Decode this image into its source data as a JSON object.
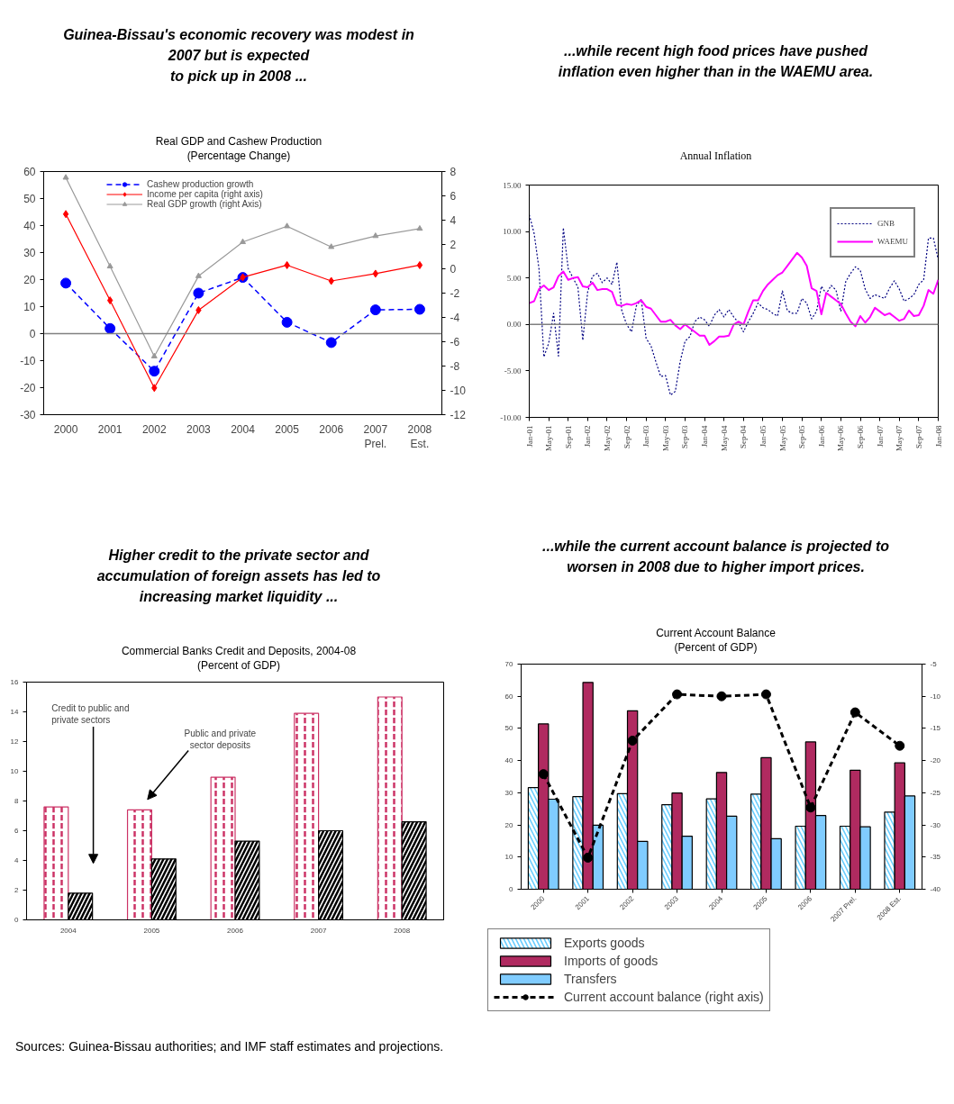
{
  "chart_data": [
    {
      "type": "line",
      "title": "Guinea-Bissau's economic recovery was modest in\n2007 but is expected\nto pick up in 2008 ...",
      "subtitle": "Real GDP and Cashew Production\n(Percentage Change)",
      "categories": [
        "2000",
        "2001",
        "2002",
        "2003",
        "2004",
        "2005",
        "2006",
        "2007\nPrel.",
        "2008\nEst."
      ],
      "ylim": [
        -30,
        60
      ],
      "yticks": [
        -30,
        -20,
        -10,
        0,
        10,
        20,
        30,
        40,
        50,
        60
      ],
      "y2lim": [
        -12,
        8
      ],
      "y2ticks": [
        -12,
        -10,
        -8,
        -6,
        -4,
        -2,
        0,
        2,
        4,
        6,
        8
      ],
      "ref_lines": [
        {
          "axis": "y",
          "value": 0,
          "color": "#808080"
        }
      ],
      "grid": false,
      "legend": "top left",
      "series": [
        {
          "name": "Cashew production growth",
          "color": "#0000ff",
          "marker": "circle",
          "line_style": "dashed",
          "values": [
            18.7,
            1.9,
            -13.9,
            15.0,
            20.8,
            4.2,
            -3.3,
            8.8,
            9.0
          ]
        },
        {
          "name": "Income per capita (right axis)",
          "color": "#ff0000",
          "marker": "diamond",
          "line_style": "solid",
          "axis": "y2",
          "values": [
            4.5,
            -2.6,
            -9.8,
            -3.4,
            -0.7,
            0.3,
            -1.0,
            -0.4,
            0.3
          ]
        },
        {
          "name": "Real GDP growth (right Axis)",
          "color": "#999999",
          "marker": "triangle",
          "line_style": "solid",
          "axis": "y2",
          "values": [
            7.5,
            0.2,
            -7.2,
            -0.6,
            2.2,
            3.5,
            1.8,
            2.7,
            3.3
          ]
        }
      ]
    },
    {
      "type": "line",
      "title": "...while recent high food prices have pushed\ninflation even higher than in the WAEMU area.",
      "subtitle": "Annual Inflation",
      "categories": [
        "Jan-01",
        null,
        null,
        null,
        "May-01",
        null,
        null,
        null,
        "Sep-01",
        null,
        null,
        null,
        "Jan-02",
        null,
        null,
        null,
        "May-02",
        null,
        null,
        null,
        "Sep-02",
        null,
        null,
        null,
        "Jan-03",
        null,
        null,
        null,
        "May-03",
        null,
        null,
        null,
        "Sep-03",
        null,
        null,
        null,
        "Jan-04",
        null,
        null,
        null,
        "May-04",
        null,
        null,
        null,
        "Sep-04",
        null,
        null,
        null,
        "Jan-05",
        null,
        null,
        null,
        "May-05",
        null,
        null,
        null,
        "Sep-05",
        null,
        null,
        null,
        "Jan-06",
        null,
        null,
        null,
        "May-06",
        null,
        null,
        null,
        "Sep-06",
        null,
        null,
        null,
        "Jan-07",
        null,
        null,
        null,
        "May-07",
        null,
        null,
        null,
        "Sep-07",
        null,
        null,
        null,
        "Jan-08"
      ],
      "ylim": [
        -10,
        15
      ],
      "yticks": [
        {
          "value": -10,
          "label": "-10.00"
        },
        {
          "value": -5,
          "label": "-5.00"
        },
        {
          "value": 0,
          "label": "0.00"
        },
        {
          "value": 5,
          "label": "5.00"
        },
        {
          "value": 10,
          "label": "10.00"
        },
        {
          "value": 15,
          "label": "15.00"
        }
      ],
      "ref_lines": [
        {
          "axis": "y",
          "value": 0,
          "color": "#808080"
        }
      ],
      "grid": false,
      "legend": "top right",
      "series": [
        {
          "name": "GNB",
          "color": "#000080",
          "line_style": "dotted",
          "values": [
            11.8,
            9.8,
            6.0,
            -3.5,
            -2.0,
            1.2,
            -3.4,
            10.4,
            6.0,
            5.0,
            4.0,
            -1.7,
            3.5,
            5.2,
            5.5,
            4.5,
            5.0,
            4.3,
            6.7,
            1.5,
            0.0,
            -0.8,
            2.0,
            2.7,
            -1.5,
            -2.3,
            -4.0,
            -5.6,
            -5.5,
            -7.6,
            -7.2,
            -4.0,
            -1.8,
            -1.3,
            0.3,
            0.8,
            0.5,
            -0.2,
            1.0,
            1.6,
            0.8,
            1.6,
            0.8,
            0.2,
            -0.8,
            0.3,
            1.2,
            2.3,
            1.8,
            1.6,
            1.2,
            0.9,
            3.6,
            1.5,
            1.2,
            1.2,
            2.8,
            2.3,
            0.6,
            1.4,
            4.1,
            3.3,
            4.2,
            3.7,
            1.4,
            4.6,
            5.5,
            6.2,
            5.8,
            3.8,
            2.8,
            3.2,
            3.0,
            2.8,
            3.9,
            4.7,
            3.8,
            2.5,
            2.8,
            3.2,
            4.3,
            4.8,
            9.3,
            9.3,
            7.0
          ]
        },
        {
          "name": "WAEMU",
          "color": "#ff00ff",
          "line_style": "solid",
          "values": [
            2.3,
            2.5,
            3.8,
            4.2,
            3.7,
            4.0,
            5.2,
            5.7,
            4.8,
            5.0,
            5.1,
            4.1,
            4.0,
            4.5,
            3.7,
            3.8,
            3.8,
            3.5,
            2.1,
            2.0,
            2.2,
            2.1,
            2.3,
            2.6,
            1.9,
            1.7,
            1.0,
            0.3,
            0.3,
            0.5,
            -0.1,
            -0.5,
            0.0,
            -0.4,
            -0.8,
            -1.2,
            -1.2,
            -2.2,
            -1.8,
            -1.3,
            -1.3,
            -1.2,
            0.0,
            0.3,
            0.0,
            1.4,
            2.6,
            2.6,
            3.6,
            4.3,
            4.8,
            5.3,
            5.6,
            6.3,
            7.0,
            7.7,
            7.2,
            6.3,
            3.9,
            3.6,
            1.1,
            3.4,
            3.0,
            2.6,
            2.2,
            1.2,
            0.3,
            -0.2,
            0.9,
            0.2,
            0.8,
            1.8,
            1.4,
            1.0,
            1.2,
            0.8,
            0.4,
            0.6,
            1.5,
            0.9,
            1.0,
            2.0,
            3.7,
            3.3,
            4.8
          ]
        }
      ]
    },
    {
      "type": "bar",
      "title": "Higher credit to the private sector and\naccumulation of foreign assets has led to\nincreasing market liquidity ...",
      "subtitle": "Commercial Banks Credit and Deposits, 2004-08\n(Percent of GDP)",
      "categories": [
        "2004",
        "2005",
        "2006",
        "2007",
        "2008"
      ],
      "ylim": [
        0,
        16
      ],
      "yticks": [
        0,
        2,
        4,
        6,
        8,
        10,
        12,
        14,
        16
      ],
      "grid": false,
      "annotations": [
        "Credit to public and\nprivate sectors",
        "Public and private\nsector deposits"
      ],
      "series": [
        {
          "color": "#cc3366",
          "values": [
            7.6,
            7.4,
            9.6,
            13.9,
            15.0
          ]
        },
        {
          "color": "#000000",
          "values": [
            1.8,
            4.1,
            5.3,
            6.0,
            6.6
          ]
        }
      ]
    },
    {
      "type": "bar",
      "title": "...while the current account  balance is projected to\nworsen in 2008 due to higher import prices.",
      "subtitle": "Current Account Balance\n(Percent of GDP)",
      "categories": [
        "2000",
        "2001",
        "2002",
        "2003",
        "2004",
        "2005",
        "2006",
        "2007 Prel.",
        "2008 Est."
      ],
      "ylim": [
        0,
        70
      ],
      "yticks": [
        0,
        10,
        20,
        30,
        40,
        50,
        60,
        70
      ],
      "y2lim": [
        -40,
        -5
      ],
      "y2ticks": [
        -40,
        -35,
        -30,
        -25,
        -20,
        -15,
        -10,
        -5
      ],
      "grid": false,
      "legend": "bottom",
      "annotations": [
        "Sources: Guinea-Bissau authorities; and IMF staff estimates and projections."
      ],
      "series": [
        {
          "name": "Exports goods",
          "color": "#66ccff",
          "values": [
            31.6,
            28.8,
            29.7,
            26.3,
            28.1,
            29.6,
            19.6,
            19.6,
            24.0
          ]
        },
        {
          "name": "Imports of goods",
          "color": "#b02a60",
          "values": [
            51.4,
            64.3,
            55.5,
            29.9,
            36.3,
            40.9,
            45.8,
            37.0,
            39.3
          ]
        },
        {
          "name": "Transfers",
          "color": "#80ccff",
          "values": [
            28.0,
            19.9,
            14.9,
            16.5,
            22.7,
            15.7,
            22.9,
            19.4,
            29.0
          ]
        },
        {
          "name": "Current account balance (right axis)",
          "type": "line",
          "axis": "y2",
          "color": "#000000",
          "marker": "circle",
          "line_style": "dashed",
          "values": [
            -22.1,
            -35.1,
            -16.9,
            -9.7,
            -10.0,
            -9.7,
            -27.3,
            -12.5,
            -17.7
          ]
        }
      ]
    }
  ]
}
